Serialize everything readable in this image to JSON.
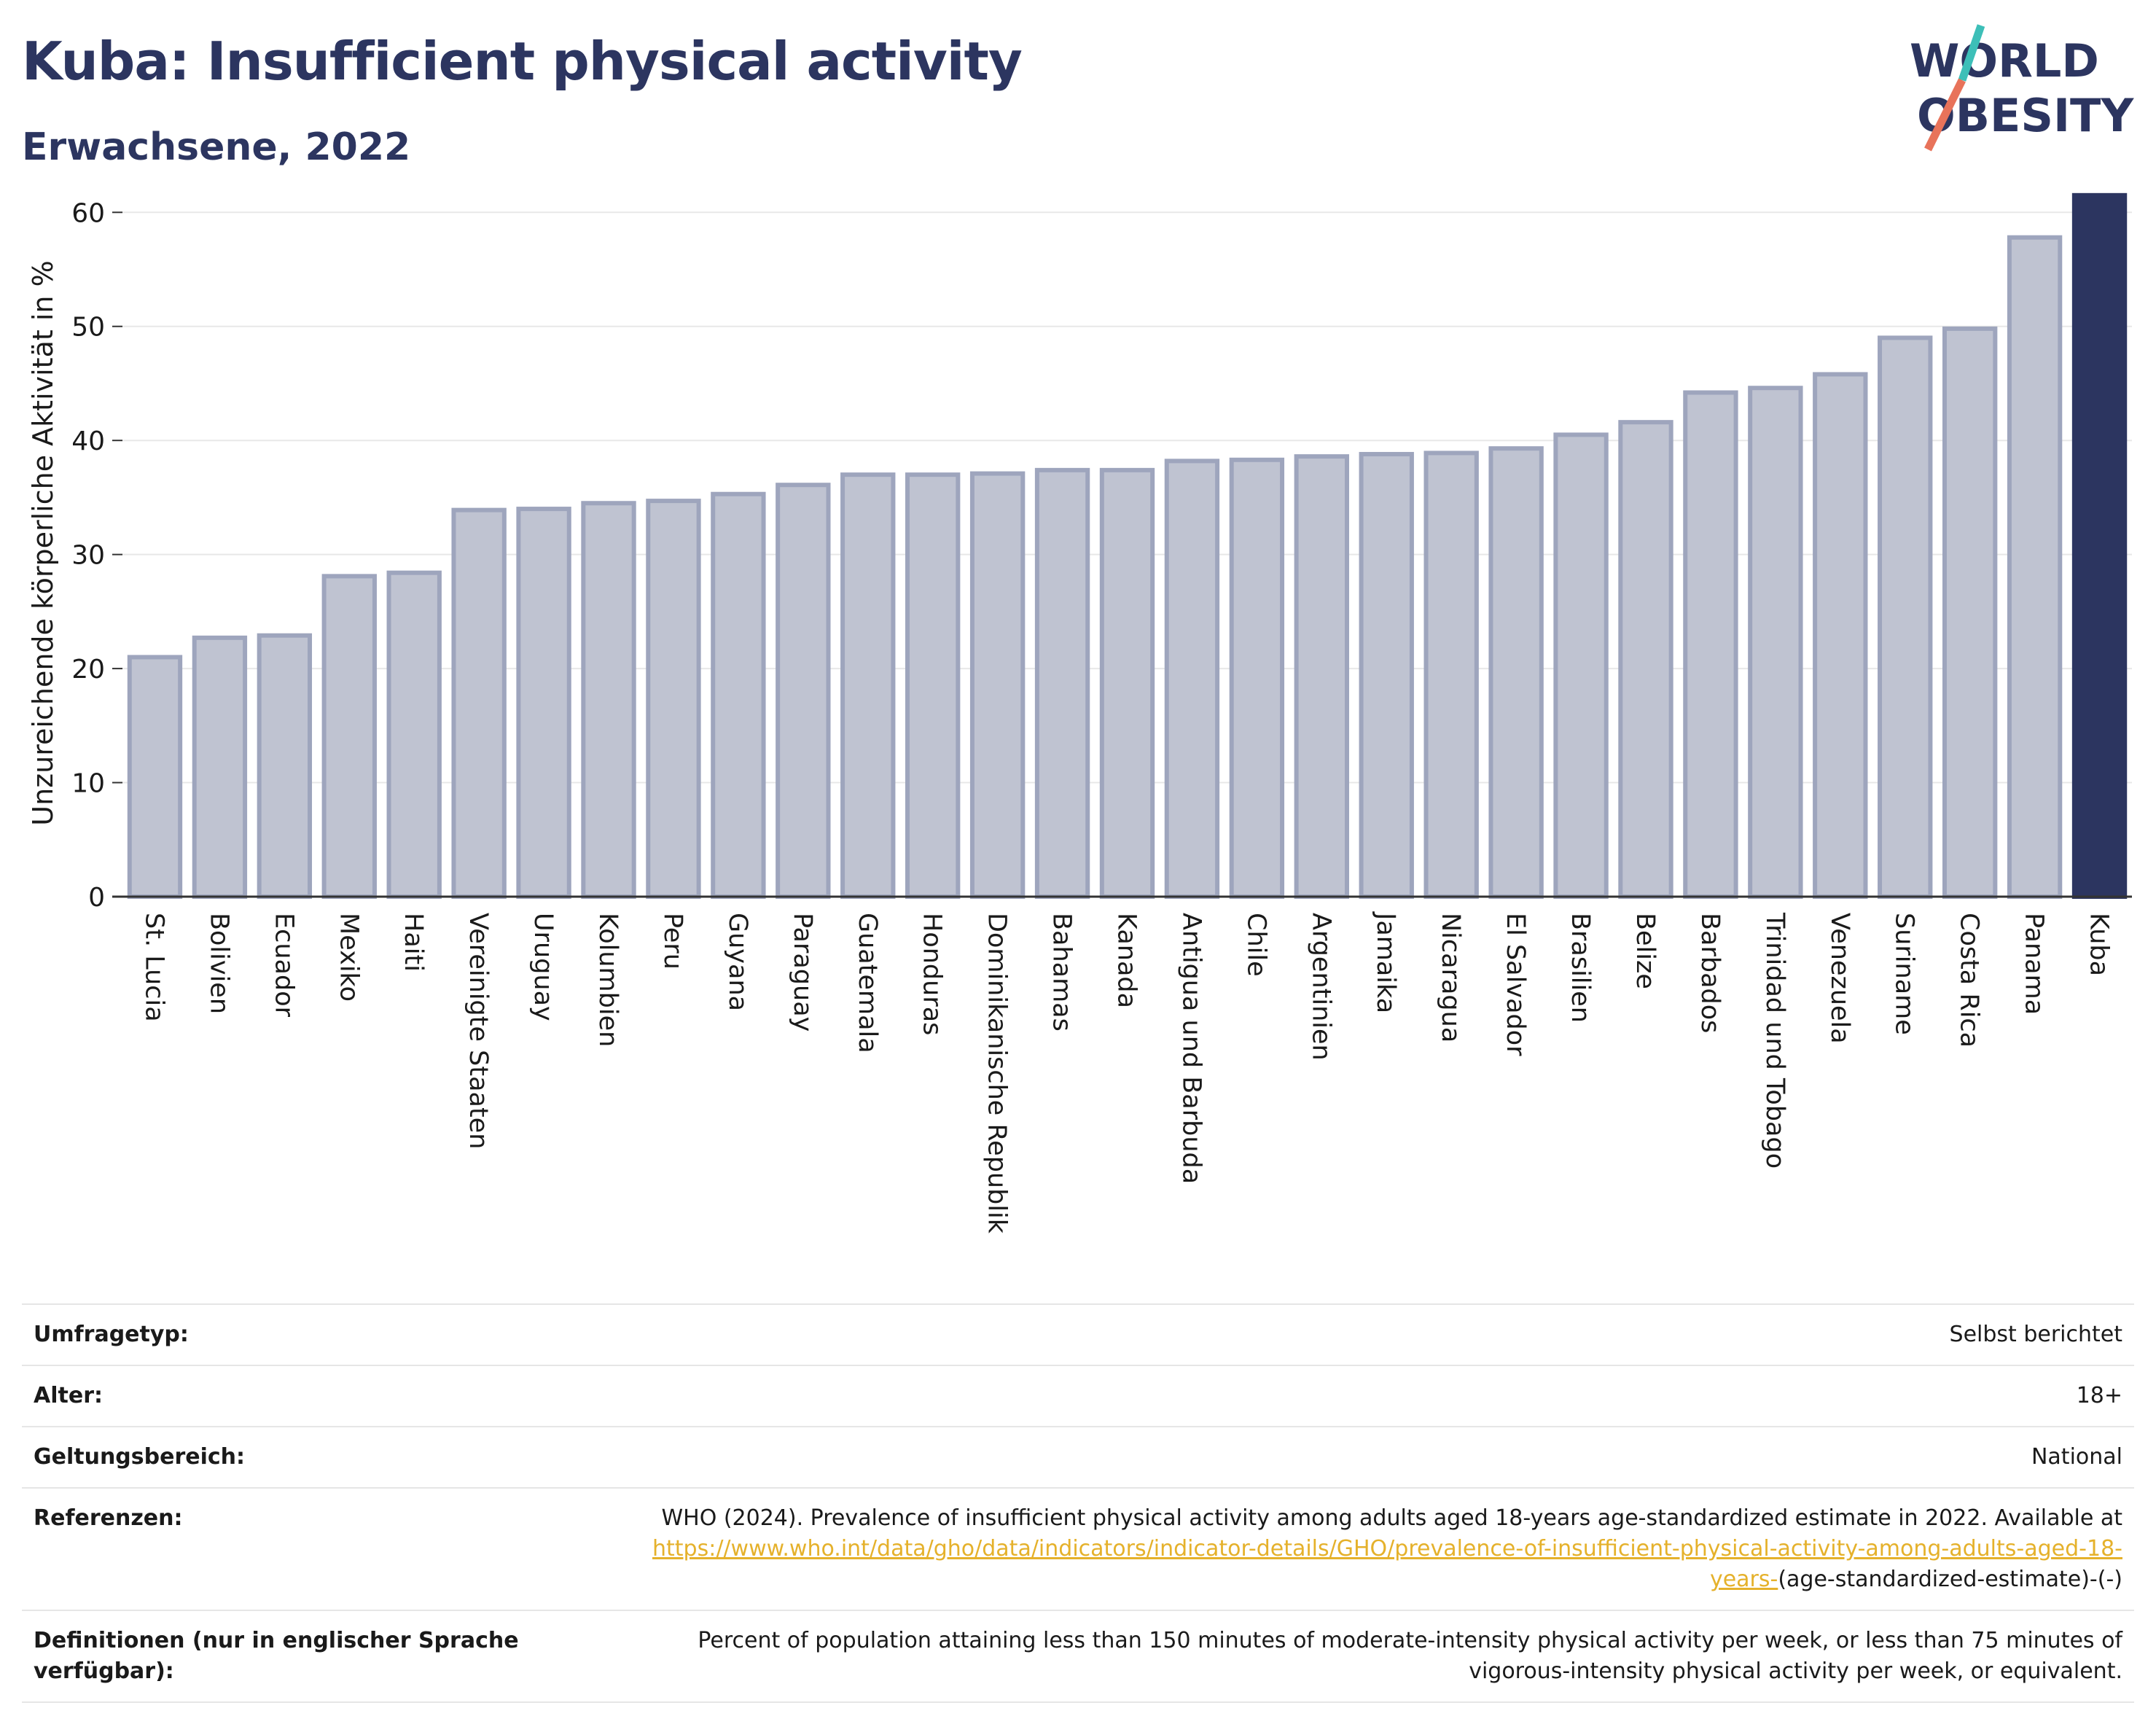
{
  "header": {
    "title": "Kuba: Insufficient physical activity",
    "subtitle": "Erwachsene, 2022"
  },
  "logo": {
    "line1": "WORLD",
    "line2": "OBESITY",
    "accent_color": "#e8735a",
    "accent_color2": "#3dbfb8"
  },
  "colors": {
    "bar": "#bfc3d1",
    "bar_border": "#9ea5bd",
    "highlight": "#2c3560",
    "grid": "#e8e8e8"
  },
  "chart_data": {
    "type": "bar",
    "ylabel": "Unzureichende körperliche Aktivität in %",
    "xlabel": "",
    "ylim": [
      0,
      62
    ],
    "yticks": [
      0,
      10,
      20,
      30,
      40,
      50,
      60
    ],
    "grid": true,
    "highlight": "Kuba",
    "categories": [
      "St. Lucia",
      "Bolivien",
      "Ecuador",
      "Mexiko",
      "Haiti",
      "Vereinigte Staaten",
      "Uruguay",
      "Kolumbien",
      "Peru",
      "Guyana",
      "Paraguay",
      "Guatemala",
      "Honduras",
      "Dominikanische Republik",
      "Bahamas",
      "Kanada",
      "Antigua und Barbuda",
      "Chile",
      "Argentinien",
      "Jamaika",
      "Nicaragua",
      "El Salvador",
      "Brasilien",
      "Belize",
      "Barbados",
      "Trinidad und Tobago",
      "Venezuela",
      "Suriname",
      "Costa Rica",
      "Panama",
      "Kuba"
    ],
    "values": [
      21.0,
      22.7,
      22.9,
      28.1,
      28.4,
      33.9,
      34.0,
      34.5,
      34.7,
      35.3,
      36.1,
      37.0,
      37.0,
      37.1,
      37.4,
      37.4,
      38.2,
      38.3,
      38.6,
      38.8,
      38.9,
      39.3,
      40.5,
      41.6,
      44.2,
      44.6,
      45.8,
      49.0,
      49.8,
      57.8,
      61.5
    ]
  },
  "meta": [
    {
      "label": "Umfragetyp:",
      "value": "Selbst berichtet"
    },
    {
      "label": "Alter:",
      "value": "18+"
    },
    {
      "label": "Geltungsbereich:",
      "value": "National"
    },
    {
      "label": "Referenzen:",
      "value": "WHO (2024). Prevalence of insufficient physical activity among adults aged 18-years age-standardized estimate in 2022. Available at",
      "link": "https://www.who.int/data/gho/data/indicators/indicator-details/GHO/prevalence-of-insufficient-physical-activity-among-adults-aged-18-years-",
      "suffix": "(age-standardized-estimate)-(-)"
    },
    {
      "label": "Definitionen (nur in englischer Sprache verfügbar):",
      "value": "Percent of population attaining less than 150 minutes of moderate-intensity physical activity per week, or less than 75 minutes of vigorous-intensity physical activity per week, or equivalent."
    }
  ]
}
